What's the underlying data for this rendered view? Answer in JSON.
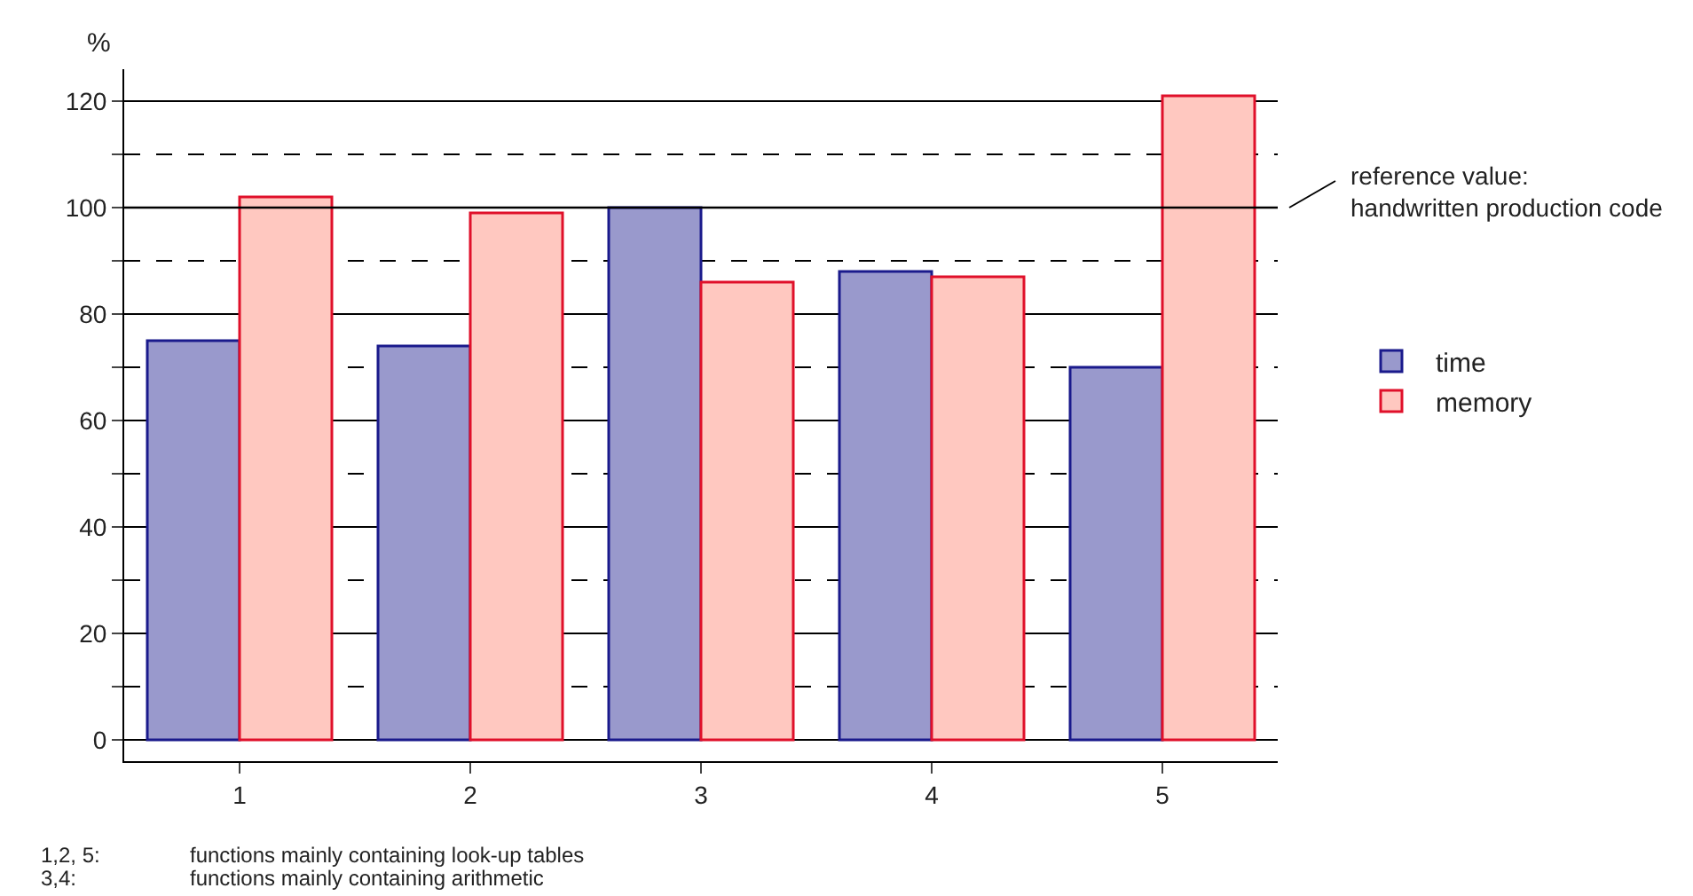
{
  "chart_data": {
    "type": "bar",
    "ylabel": "%",
    "categories": [
      "1",
      "2",
      "3",
      "4",
      "5"
    ],
    "series": [
      {
        "name": "time",
        "color": "#9999cc",
        "values": [
          75,
          74,
          100,
          88,
          70
        ]
      },
      {
        "name": "memory",
        "color": "#ffc8c0",
        "values": [
          102,
          99,
          86,
          87,
          121
        ]
      }
    ],
    "ylim": [
      -4,
      126
    ],
    "yticks": [
      0,
      {
        "value": 10,
        "label": null
      },
      20,
      {
        "value": 30,
        "label": null
      },
      40,
      {
        "value": 50,
        "label": null
      },
      60,
      {
        "value": 70,
        "label": null
      },
      80,
      {
        "value": 90,
        "label": null
      },
      100,
      {
        "value": 110,
        "label": null
      },
      120
    ],
    "grid": "y",
    "legend": "right",
    "ref_lines": [
      {
        "axis": "y",
        "value": 100,
        "label": "reference value:\nhandwritten production code"
      }
    ],
    "annotations": [
      "1,2, 5:\tfunctions mainly containing look-up tables",
      "3,4:\tfunctions mainly containing arithmetic"
    ]
  }
}
